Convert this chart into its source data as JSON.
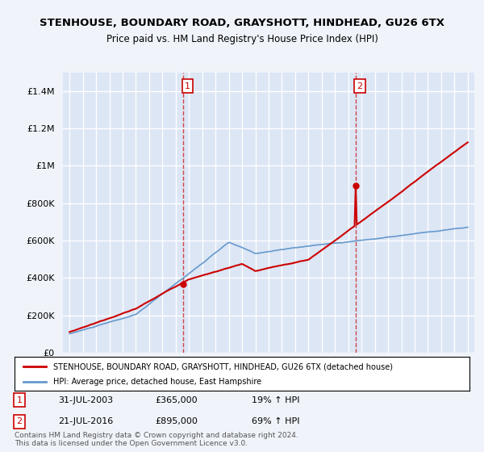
{
  "title": "STENHOUSE, BOUNDARY ROAD, GRAYSHOTT, HINDHEAD, GU26 6TX",
  "subtitle": "Price paid vs. HM Land Registry's House Price Index (HPI)",
  "red_label": "STENHOUSE, BOUNDARY ROAD, GRAYSHOTT, HINDHEAD, GU26 6TX (detached house)",
  "blue_label": "HPI: Average price, detached house, East Hampshire",
  "sale1": {
    "date": "31-JUL-2003",
    "price": 365000,
    "hpi_pct": "19%",
    "label": "1"
  },
  "sale2": {
    "date": "21-JUL-2016",
    "price": 895000,
    "hpi_pct": "69%",
    "label": "2"
  },
  "sale1_year": 2003.57,
  "sale2_year": 2016.55,
  "ylim": [
    0,
    1500000
  ],
  "yticks": [
    0,
    200000,
    400000,
    600000,
    800000,
    1000000,
    1200000,
    1400000
  ],
  "footer": "Contains HM Land Registry data © Crown copyright and database right 2024.\nThis data is licensed under the Open Government Licence v3.0.",
  "background_color": "#f0f4fa",
  "plot_background": "#dce6f5",
  "grid_color": "#ffffff",
  "red_color": "#cc0000",
  "blue_color": "#6699cc"
}
